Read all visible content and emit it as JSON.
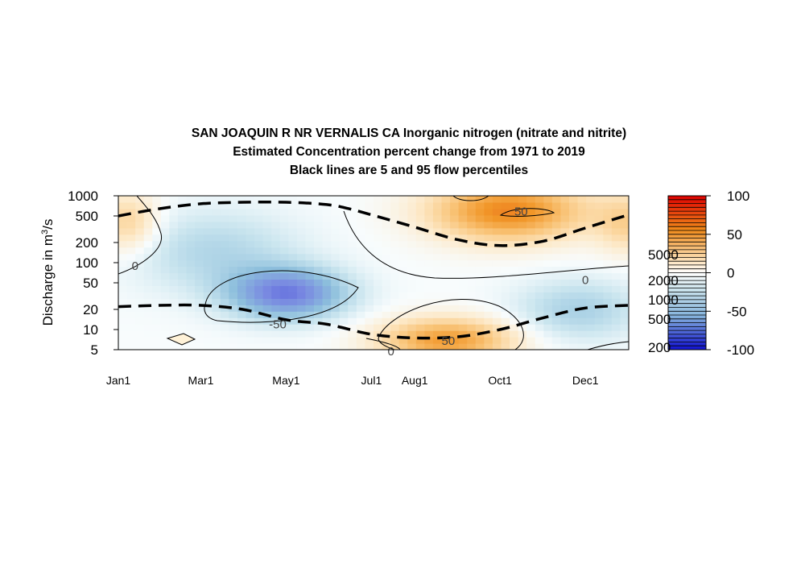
{
  "chart_data": {
    "type": "heatmap",
    "title_lines": [
      "SAN JOAQUIN R NR VERNALIS CA  Inorganic nitrogen (nitrate and nitrite)",
      "Estimated Concentration percent change from 1971 to 2019",
      "Black lines are 5 and 95 flow percentiles"
    ],
    "ylabel": "Discharge in m³/s",
    "ylabel_base": "Discharge in m",
    "ylabel_sup": "3",
    "ylabel_tail": "/s",
    "x_axis": {
      "ticks": [
        "Jan1",
        "Mar1",
        "May1",
        "Jul1",
        "Aug1",
        "Oct1",
        "Dec1"
      ],
      "tick_positions_day": [
        1,
        60,
        121,
        182,
        213,
        274,
        335
      ],
      "xlim_day": [
        1,
        366
      ]
    },
    "y_axis": {
      "scale": "log",
      "ticks": [
        "1000",
        "500",
        "200",
        "100",
        "50",
        "20",
        "10",
        "5"
      ],
      "tick_values": [
        1000,
        500,
        200,
        100,
        50,
        20,
        10,
        5
      ],
      "ylim": [
        5,
        1000
      ]
    },
    "colorbar": {
      "ticks": [
        "100",
        "50",
        "0",
        "-50",
        "-100"
      ],
      "tick_values": [
        100,
        50,
        0,
        -50,
        -100
      ],
      "range": [
        -100,
        100
      ],
      "overlay_labels": [
        "5000",
        "2000",
        "1000",
        "500",
        "200"
      ],
      "colors": {
        "low": "#0000cc",
        "mid": "#ffffff",
        "high": "#dd0000"
      }
    },
    "contour_labels": [
      "0",
      "-50",
      "50",
      "0",
      "50",
      "0"
    ],
    "contour_label_day": [
      13,
      115,
      289,
      335,
      237,
      196
    ],
    "contour_label_q": [
      90,
      12,
      580,
      55,
      6.8,
      4.7
    ],
    "blobs": [
      {
        "day": 122,
        "q": 35,
        "value": -62,
        "spread_day": 42,
        "spread_logq": 0.38
      },
      {
        "day": 280,
        "q": 600,
        "value": 60,
        "spread_day": 55,
        "spread_logq": 0.45
      },
      {
        "day": 236,
        "q": 7,
        "value": 52,
        "spread_day": 48,
        "spread_logq": 0.33
      },
      {
        "day": 8,
        "q": 400,
        "value": 28,
        "spread_day": 22,
        "spread_logq": 0.45
      },
      {
        "day": 365,
        "q": 400,
        "value": 25,
        "spread_day": 22,
        "spread_logq": 0.45
      },
      {
        "day": 70,
        "q": 150,
        "value": -22,
        "spread_day": 60,
        "spread_logq": 0.6
      },
      {
        "day": 330,
        "q": 20,
        "value": -25,
        "spread_day": 45,
        "spread_logq": 0.45
      }
    ],
    "flow_percentile_95": {
      "day": [
        1,
        30,
        60,
        90,
        121,
        150,
        166,
        182,
        213,
        244,
        274,
        305,
        335,
        366
      ],
      "q": [
        500,
        640,
        760,
        800,
        800,
        740,
        640,
        520,
        340,
        220,
        180,
        210,
        330,
        520
      ]
    },
    "flow_percentile_5": {
      "day": [
        1,
        30,
        60,
        90,
        121,
        150,
        182,
        213,
        244,
        274,
        305,
        335,
        366
      ],
      "q": [
        22,
        23,
        23,
        20,
        14,
        12,
        8.5,
        7.5,
        7.8,
        10,
        15,
        21,
        23
      ]
    }
  }
}
